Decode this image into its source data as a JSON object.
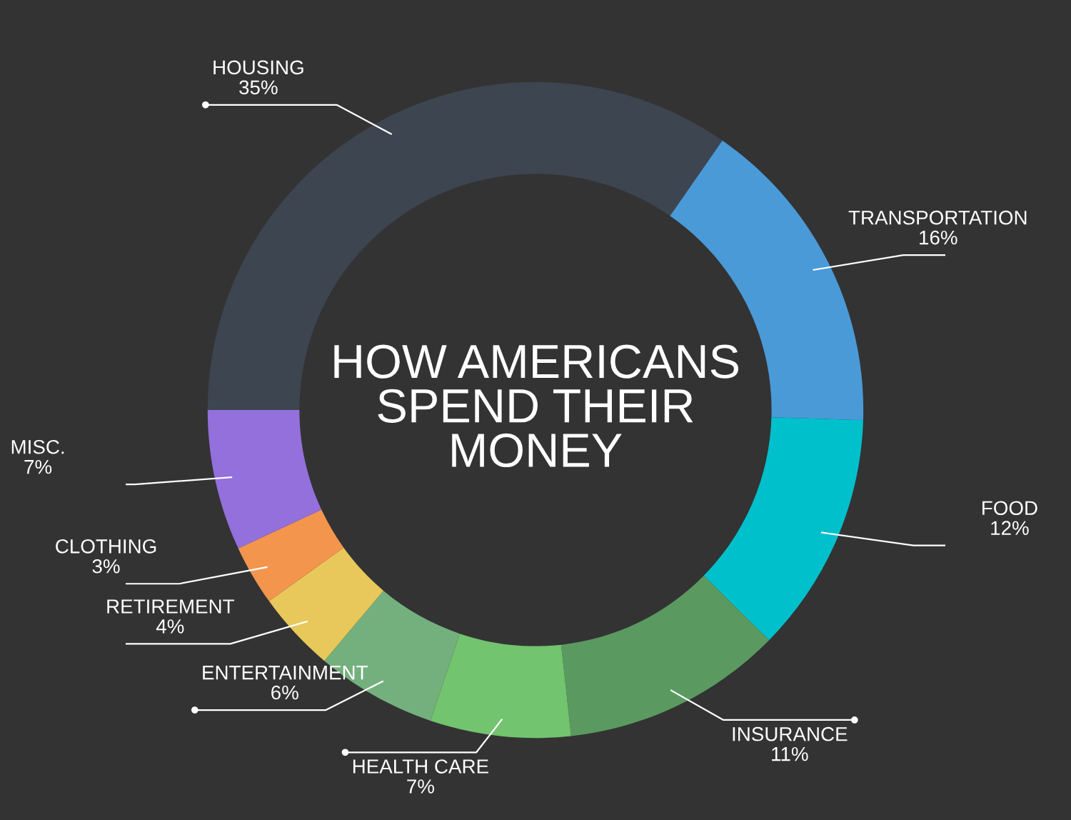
{
  "chart_data": {
    "type": "donut",
    "title": "HOW AMERICANS\nSPEND THEIR\nMONEY",
    "categories": [
      "HOUSING",
      "TRANSPORTATION",
      "FOOD",
      "INSURANCE",
      "HEALTH CARE",
      "ENTERTAINMENT",
      "RETIREMENT",
      "CLOTHING",
      "MISC."
    ],
    "values": [
      35,
      16,
      12,
      11,
      7,
      6,
      4,
      3,
      7
    ],
    "value_labels": [
      "35%",
      "16%",
      "12%",
      "11%",
      "7%",
      "6%",
      "4%",
      "3%",
      "7%"
    ],
    "colors": [
      "#3d4550",
      "#4a9ad8",
      "#00c0cc",
      "#5a9a60",
      "#72c46e",
      "#74b07e",
      "#e8c85a",
      "#f4954e",
      "#9370db"
    ]
  }
}
